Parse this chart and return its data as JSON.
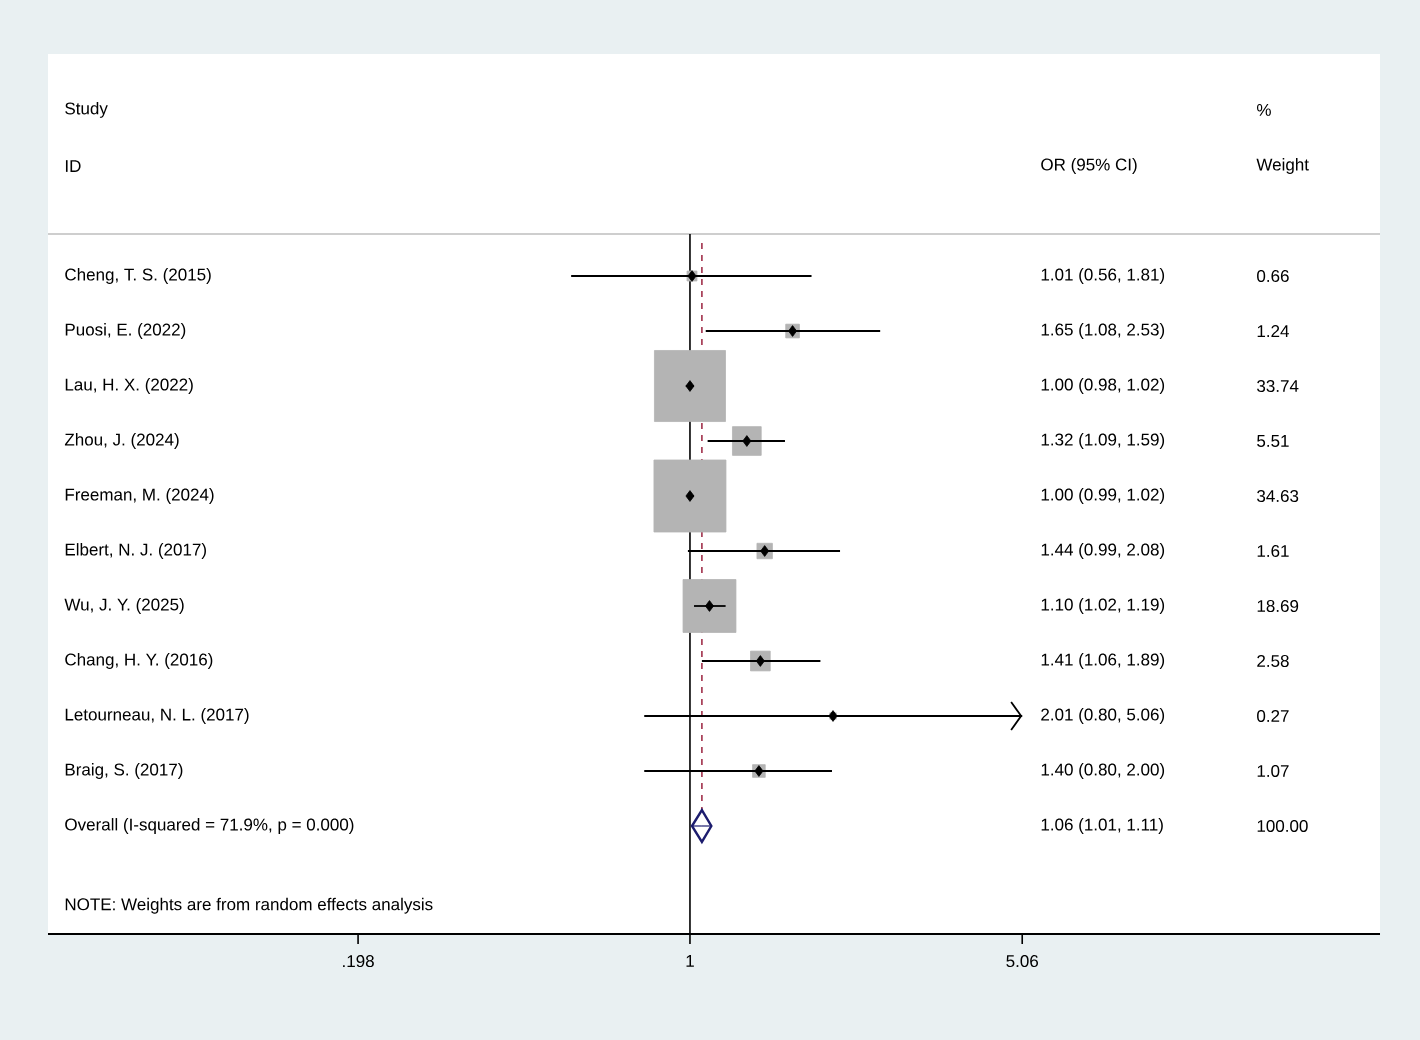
{
  "chart_data": {
    "type": "scatter",
    "orientation": "horizontal",
    "log": "x",
    "categories": [
      "Cheng, T. S. (2015)",
      "Puosi, E. (2022)",
      "Lau, H. X. (2022)",
      "Zhou, J. (2024)",
      "Freeman, M. (2024)",
      "Elbert, N. J. (2017)",
      "Wu, J. Y. (2025)",
      "Chang, H. Y. (2016)",
      "Letourneau, N. L. (2017)",
      "Braig, S. (2017)",
      "Overall  (I-squared = 71.9%, p = 0.000)"
    ],
    "xlim": [
      0.0436,
      29.0
    ],
    "xticks": [
      {
        "value": 0.198,
        "label": ".198"
      },
      1,
      5.06
    ],
    "series": [
      {
        "marker": "square",
        "color": "#b4b4b4",
        "values": [
          1.01,
          1.65,
          1.0,
          1.32,
          1.0,
          1.44,
          1.1,
          1.41,
          2.01,
          1.4,
          null
        ],
        "errors": [
          [
            0.56,
            1.81
          ],
          [
            1.08,
            2.53
          ],
          [
            0.98,
            1.02
          ],
          [
            1.09,
            1.59
          ],
          [
            0.99,
            1.02
          ],
          [
            0.99,
            2.08
          ],
          [
            1.02,
            1.19
          ],
          [
            1.06,
            1.89
          ],
          [
            0.8,
            5.06
          ],
          [
            0.8,
            2.0
          ],
          null
        ],
        "sizes": [
          0.019,
          0.036,
          0.974,
          0.159,
          1,
          0.046,
          0.54,
          0.075,
          0.008,
          0.031,
          null
        ]
      },
      {
        "marker": "diamond",
        "color": "#1c1c6e",
        "values": [
          null,
          null,
          null,
          null,
          null,
          null,
          null,
          null,
          null,
          null,
          1.06
        ],
        "errors": [
          null,
          null,
          null,
          null,
          null,
          null,
          null,
          null,
          null,
          null,
          [
            1.01,
            1.11
          ]
        ]
      }
    ],
    "ref_lines": [
      {
        "axis": "x",
        "value": 1,
        "color": "#000000",
        "line_style": "solid"
      },
      {
        "axis": "x",
        "value": 1.06,
        "color": "#a0304a",
        "line_style": "dashed"
      }
    ],
    "annotations": [
      "Study",
      "ID",
      "OR (95% CI)",
      "%",
      "Weight",
      "NOTE: Weights are from random effects analysis",
      "1.01 (0.56, 1.81)",
      "1.65 (1.08, 2.53)",
      "1.00 (0.98, 1.02)",
      "1.32 (1.09, 1.59)",
      "1.00 (0.99, 1.02)",
      "1.44 (0.99, 2.08)",
      "1.10 (1.02, 1.19)",
      "1.41 (1.06, 1.89)",
      "2.01 (0.80, 5.06)",
      "1.40 (0.80, 2.00)",
      "1.06 (1.01, 1.11)",
      "0.66",
      "1.24",
      "33.74",
      "5.51",
      "34.63",
      "1.61",
      "18.69",
      "2.58",
      "0.27",
      "1.07",
      "100.00"
    ]
  }
}
